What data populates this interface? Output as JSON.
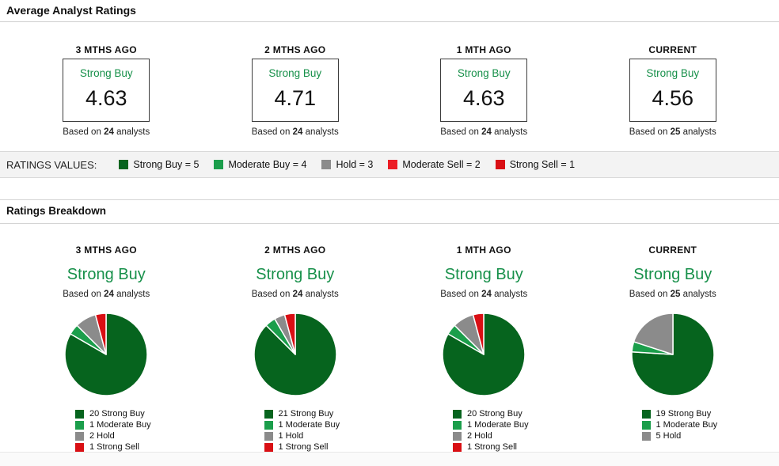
{
  "page": {
    "title": "Average Analyst Ratings",
    "breakdown_title": "Ratings Breakdown"
  },
  "strings": {
    "based_on_prefix": "Based on",
    "based_on_suffix": "analysts"
  },
  "colors": {
    "strong_buy": "#06641E",
    "moderate_buy": "#1B9E4B",
    "hold": "#8B8B8B",
    "moderate_sell": "#EC1C24",
    "strong_sell": "#D90F14",
    "rating_text_green": "#17904A"
  },
  "average": {
    "columns": [
      {
        "period": "3 MTHS AGO",
        "rating": "Strong Buy",
        "value": "4.63",
        "analysts": "24"
      },
      {
        "period": "2 MTHS AGO",
        "rating": "Strong Buy",
        "value": "4.71",
        "analysts": "24"
      },
      {
        "period": "1 MTH AGO",
        "rating": "Strong Buy",
        "value": "4.63",
        "analysts": "24"
      },
      {
        "period": "CURRENT",
        "rating": "Strong Buy",
        "value": "4.56",
        "analysts": "25"
      }
    ]
  },
  "ratings_values": {
    "label": "RATINGS VALUES:",
    "items": [
      {
        "label": "Strong Buy = 5",
        "color": "#06641E"
      },
      {
        "label": "Moderate Buy = 4",
        "color": "#1B9E4B"
      },
      {
        "label": "Hold = 3",
        "color": "#8B8B8B"
      },
      {
        "label": "Moderate Sell = 2",
        "color": "#EC1C24"
      },
      {
        "label": "Strong Sell = 1",
        "color": "#D90F14"
      }
    ]
  },
  "chart_data": [
    {
      "type": "pie",
      "period": "3 MTHS AGO",
      "rating": "Strong Buy",
      "analysts": "24",
      "labels": [
        "20 Strong Buy",
        "1 Moderate Buy",
        "2 Hold",
        "1 Strong Sell"
      ],
      "values": [
        20,
        1,
        2,
        1
      ],
      "colors": [
        "#06641E",
        "#1B9E4B",
        "#8B8B8B",
        "#D90F14"
      ],
      "start_angle": "top",
      "direction": "clockwise",
      "legend_position": "bottom-left"
    },
    {
      "type": "pie",
      "period": "2 MTHS AGO",
      "rating": "Strong Buy",
      "analysts": "24",
      "labels": [
        "21 Strong Buy",
        "1 Moderate Buy",
        "1 Hold",
        "1 Strong Sell"
      ],
      "values": [
        21,
        1,
        1,
        1
      ],
      "colors": [
        "#06641E",
        "#1B9E4B",
        "#8B8B8B",
        "#D90F14"
      ],
      "start_angle": "top",
      "direction": "clockwise",
      "legend_position": "bottom-left"
    },
    {
      "type": "pie",
      "period": "1 MTH AGO",
      "rating": "Strong Buy",
      "analysts": "24",
      "labels": [
        "20 Strong Buy",
        "1 Moderate Buy",
        "2 Hold",
        "1 Strong Sell"
      ],
      "values": [
        20,
        1,
        2,
        1
      ],
      "colors": [
        "#06641E",
        "#1B9E4B",
        "#8B8B8B",
        "#D90F14"
      ],
      "start_angle": "top",
      "direction": "clockwise",
      "legend_position": "bottom-left"
    },
    {
      "type": "pie",
      "period": "CURRENT",
      "rating": "Strong Buy",
      "analysts": "25",
      "labels": [
        "19 Strong Buy",
        "1 Moderate Buy",
        "5 Hold"
      ],
      "values": [
        19,
        1,
        5
      ],
      "colors": [
        "#06641E",
        "#1B9E4B",
        "#8B8B8B"
      ],
      "start_angle": "top",
      "direction": "clockwise",
      "legend_position": "bottom-left"
    }
  ]
}
